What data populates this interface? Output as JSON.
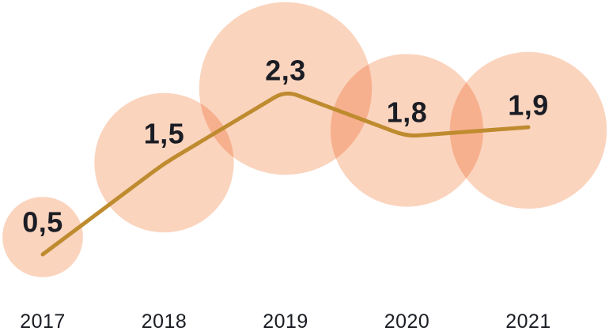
{
  "chart_data": {
    "type": "line",
    "subtype": "line-with-proportional-bubbles",
    "title": "",
    "xlabel": "",
    "ylabel": "",
    "categories": [
      "2017",
      "2018",
      "2019",
      "2020",
      "2021"
    ],
    "values": [
      0.5,
      1.5,
      2.3,
      1.8,
      1.9
    ],
    "value_labels": [
      "0,5",
      "1,5",
      "2,3",
      "1,8",
      "1,9"
    ],
    "decimal_separator": ",",
    "ylim": [
      0,
      2.5
    ],
    "grid": false,
    "legend_position": "none",
    "bubble_area_proportional_to_value": true,
    "colors": {
      "bubble_fill": "#FBD4BE",
      "bubble_overlap": "#F6B192",
      "line": "#BE8B2F",
      "label_text": "#1B1D24",
      "background": "#FFFFFF"
    }
  }
}
